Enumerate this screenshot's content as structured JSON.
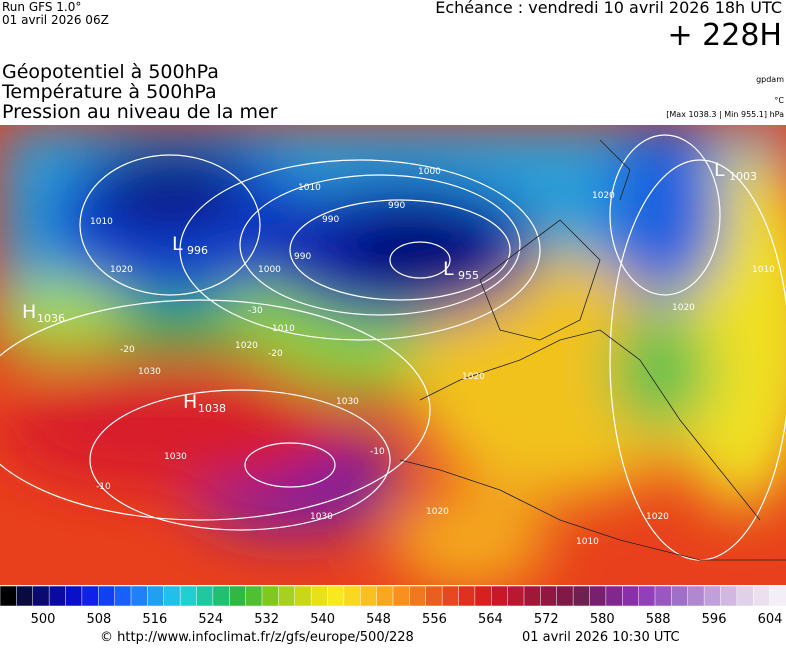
{
  "header": {
    "run": "Run GFS 1.0°",
    "run_time": "01 avril 2026 06Z",
    "echeance": "Echéance : vendredi 10 avril 2026 18h UTC",
    "lead": "+ 228H"
  },
  "titles": [
    "Géopotentiel à 500hPa",
    "Température à 500hPa",
    "Pression au niveau de la mer"
  ],
  "units": [
    "gpdam",
    "°C",
    "[Max 1038.3 | Min 955.1] hPa"
  ],
  "map": {
    "centers": [
      {
        "letter": "H",
        "value": 1036
      },
      {
        "letter": "L",
        "value": 996
      },
      {
        "letter": "L",
        "value": 955
      },
      {
        "letter": "L",
        "value": 1003
      },
      {
        "letter": "H",
        "value": 1038
      }
    ],
    "contour_labels": [
      1010,
      1020,
      1010,
      1020,
      1030,
      1030,
      1030,
      1030,
      990,
      990,
      1000,
      990,
      1010,
      1000,
      1020,
      1020,
      1010,
      1020,
      1020,
      1010,
      1020,
      -30,
      -20,
      -20,
      -10,
      -10
    ]
  },
  "colorbar": {
    "labels": [
      500,
      508,
      516,
      524,
      532,
      540,
      548,
      556,
      564,
      572,
      580,
      588,
      596,
      604
    ]
  },
  "footer": {
    "url": "© http://www.infoclimat.fr/z/gfs/europe/500/228",
    "date": "01 avril 2026 10:30 UTC"
  }
}
